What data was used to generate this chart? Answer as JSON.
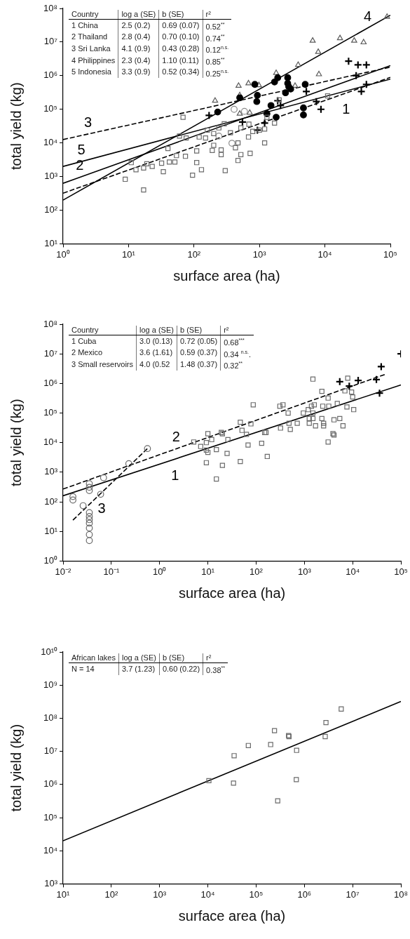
{
  "chart_data": [
    {
      "type": "scatter",
      "log": "xy",
      "xlabel": "surface area (ha)",
      "ylabel": "total yield (kg)",
      "xlim": [
        1,
        100000
      ],
      "ylim": [
        10,
        100000000
      ],
      "xticks": [
        {
          "value": 1,
          "label": "10⁰"
        },
        {
          "value": 10,
          "label": "10¹"
        },
        {
          "value": 100,
          "label": "10²"
        },
        {
          "value": 1000,
          "label": "10³"
        },
        {
          "value": 10000,
          "label": "10⁴"
        },
        {
          "value": 100000,
          "label": "10⁵"
        }
      ],
      "yticks": [
        {
          "value": 10,
          "label": "10¹"
        },
        {
          "value": 100,
          "label": "10²"
        },
        {
          "value": 1000,
          "label": "10³"
        },
        {
          "value": 10000,
          "label": "10⁴"
        },
        {
          "value": 100000,
          "label": "10⁵"
        },
        {
          "value": 1000000,
          "label": "10⁶"
        },
        {
          "value": 10000000,
          "label": "10⁷"
        },
        {
          "value": 100000000,
          "label": "10⁸"
        }
      ],
      "annotations": [
        "Country",
        "log a (SE)",
        "b (SE)",
        "r²",
        "1 China",
        "2.5 (0.2)",
        "0.69 (0.07)",
        "0.52$^{**}$",
        "2 Thailand",
        "2.8 (0.4)",
        "0.70 (0.10)",
        "0.74$^{**}$",
        "3 Sri Lanka",
        "4.1 (0.9)",
        "0.43 (0.28)",
        "0.12$^{n.s.}$",
        "4 Philippines",
        "2.3 (0.4)",
        "1.10 (0.11)",
        "0.85$^{**}$",
        "5 Indonesia",
        "3.3 (0.9)",
        "0.52 (0.34)",
        "0.25$^{n.s.}$",
        {
          "text": "4",
          "x": 45000,
          "y": 26000000
        },
        {
          "text": "3",
          "x": 2.4,
          "y": 18200
        },
        {
          "text": "5",
          "x": 1.9,
          "y": 2800
        },
        {
          "text": "2",
          "x": 1.8,
          "y": 950
        },
        {
          "text": "1",
          "x": 21000,
          "y": 300000
        }
      ],
      "series": [
        {
          "type": "scatter",
          "marker": "square",
          "color": "#6b6b6b",
          "x": [
            68,
            11000,
            2000,
            160,
            60,
            76,
            120,
            150,
            200,
            290,
            240,
            360,
            520,
            690,
            790,
            1000,
            1200,
            1700,
            200,
            260,
            430,
            470,
            680,
            1200,
            110,
            190,
            260,
            520,
            720,
            470,
            300,
            110,
            130,
            95,
            74,
            54,
            40,
            42,
            32,
            51,
            23,
            19,
            17,
            13,
            11,
            8.9,
            1300,
            17,
            34
          ],
          "values": [
            58000,
            250000,
            190000,
            24000,
            16000,
            14000,
            15000,
            14000,
            19000,
            37000,
            28000,
            20000,
            28000,
            36000,
            22000,
            24000,
            26000,
            39000,
            8500,
            6200,
            7200,
            10000,
            15000,
            10000,
            5800,
            6000,
            4500,
            4500,
            4900,
            3000,
            1500,
            2600,
            1600,
            1100,
            4000,
            4200,
            6800,
            2700,
            2500,
            2700,
            2000,
            2400,
            1800,
            1600,
            2600,
            830,
            58000,
            400,
            1400
          ]
        },
        {
          "type": "scatter",
          "marker": "circle",
          "color": "#8a8a8a",
          "x": [
            410,
            590,
            240,
            380
          ],
          "values": [
            100000,
            87000,
            16000,
            9800
          ]
        },
        {
          "type": "scatter",
          "marker": "circle",
          "color": "#000000",
          "x": [
            850,
            500,
            930,
            910,
            230,
            1700,
            1900,
            2700,
            2700,
            2800,
            2500,
            3000,
            5000,
            1500,
            1300,
            1800,
            4700,
            4700
          ],
          "values": [
            550000,
            220000,
            260000,
            170000,
            83000,
            650000,
            870000,
            870000,
            590000,
            470000,
            310000,
            400000,
            550000,
            130000,
            74000,
            58000,
            110000,
            68000
          ]
        },
        {
          "type": "scatter",
          "marker": "triangle",
          "color": "#5a5a5a",
          "x": [
            480,
            680,
            980,
            210,
            500,
            500,
            710,
            1800,
            3500,
            3900,
            6500,
            7900,
            8100,
            17000,
            28000,
            39000,
            89000
          ],
          "values": [
            500000,
            590000,
            520000,
            180000,
            260000,
            74000,
            79000,
            1200000,
            500000,
            2100000,
            11000000,
            5100000,
            1100000,
            13000000,
            11000000,
            9800000,
            56000000
          ]
        },
        {
          "type": "scatter",
          "marker": "cross",
          "color": "#000000",
          "x": [
            170,
            550,
            930,
            1200,
            1900,
            2100,
            5200,
            7400,
            8700,
            23000,
            32000,
            43000,
            30000,
            43000,
            36000
          ],
          "values": [
            66000,
            42000,
            24000,
            39000,
            180000,
            130000,
            340000,
            170000,
            100000,
            2700000,
            2100000,
            2100000,
            1000000,
            550000,
            340000
          ]
        },
        {
          "type": "line",
          "marker": "none",
          "line_style": "dashed",
          "color": "#000000",
          "x": [
            1,
            100000
          ],
          "values": [
            320,
            890000
          ]
        },
        {
          "type": "line",
          "marker": "none",
          "line_style": "solid",
          "color": "#000000",
          "x": [
            1,
            100000
          ],
          "values": [
            630,
            2000000
          ]
        },
        {
          "type": "line",
          "marker": "none",
          "line_style": "dashed",
          "color": "#000000",
          "x": [
            1,
            100000
          ],
          "values": [
            12600,
            1800000
          ]
        },
        {
          "type": "line",
          "marker": "none",
          "line_style": "solid",
          "color": "#000000",
          "x": [
            1,
            100000
          ],
          "values": [
            200,
            63000000
          ]
        },
        {
          "type": "line",
          "marker": "none",
          "line_style": "solid",
          "color": "#000000",
          "x": [
            1,
            100000
          ],
          "values": [
            2000,
            790000
          ]
        }
      ]
    },
    {
      "type": "scatter",
      "log": "xy",
      "xlabel": "surface area (ha)",
      "ylabel": "total yield (kg)",
      "xlim": [
        0.01,
        100000
      ],
      "ylim": [
        1,
        100000000
      ],
      "xticks": [
        {
          "value": 0.01,
          "label": "10⁻²"
        },
        {
          "value": 0.1,
          "label": "10⁻¹"
        },
        {
          "value": 1,
          "label": "10⁰"
        },
        {
          "value": 10,
          "label": "10¹"
        },
        {
          "value": 100,
          "label": "10²"
        },
        {
          "value": 1000,
          "label": "10³"
        },
        {
          "value": 10000,
          "label": "10⁴"
        },
        {
          "value": 100000,
          "label": "10⁵"
        }
      ],
      "yticks": [
        {
          "value": 1,
          "label": "10⁰"
        },
        {
          "value": 10,
          "label": "10¹"
        },
        {
          "value": 100,
          "label": "10²"
        },
        {
          "value": 1000,
          "label": "10³"
        },
        {
          "value": 10000,
          "label": "10⁴"
        },
        {
          "value": 100000,
          "label": "10⁵"
        },
        {
          "value": 1000000,
          "label": "10⁶"
        },
        {
          "value": 10000000,
          "label": "10⁷"
        },
        {
          "value": 100000000,
          "label": "10⁸"
        }
      ],
      "annotations": [
        "Country",
        "log a (SE)",
        "b (SE)",
        "r²",
        "1 Cuba",
        "3.0 (0.13)",
        "0.72 (0.05)",
        "0.68$^{***}$",
        "2 Mexico",
        "3.6 (1.61)",
        "0.59 (0.37)",
        "0.34 $^{n.s.}$.",
        "3 Small reservoirs",
        "4.0 (0.52",
        "1.48 (0.37)",
        "0.32$^{**}$",
        {
          "text": "2",
          "x": 2.2,
          "y": 6200
        },
        {
          "text": "1",
          "x": 2.1,
          "y": 2800
        },
        {
          "text": "3",
          "x": 0.063,
          "y": 206
        }
      ],
      "series": [
        {
          "type": "scatter",
          "marker": "circle",
          "color": "#6b6b6b",
          "x": [
            0.016,
            0.016,
            0.035,
            0.035,
            0.035,
            0.069,
            0.06,
            0.026,
            0.035,
            0.035,
            0.035,
            0.035,
            0.035,
            0.035,
            0.035,
            0.23,
            0.56
          ],
          "values": [
            150,
            115,
            410,
            310,
            240,
            650,
            180,
            74,
            43,
            32,
            25,
            19,
            13,
            7.8,
            4.9,
            1950,
            6300
          ]
        },
        {
          "type": "scatter",
          "marker": "square",
          "color": "#6b6b6b",
          "x": [
            5.1,
            7.1,
            9.3,
            9.3,
            10,
            12,
            15,
            20,
            26,
            25,
            9.3,
            20,
            15,
            47,
            51,
            63,
            47,
            68,
            78,
            130,
            150,
            170,
            320,
            510,
            710,
            1260,
            1700,
            2500,
            4100,
            3100,
            6300,
            1500,
            87,
            2300,
            3100,
            7900,
            6900,
            9500,
            10000,
            310,
            360,
            460,
            950,
            1400,
            1500,
            1200,
            1600,
            2400,
            3200,
            4800,
            7600,
            10500,
            480,
            2300,
            2500,
            4100,
            5400,
            3900,
            1260,
            1500,
            160,
            10,
            19
          ],
          "values": [
            10500,
            7400,
            10000,
            5600,
            4700,
            12600,
            5800,
            20000,
            12600,
            4300,
            2100,
            1700,
            590,
            49000,
            26000,
            19000,
            2300,
            8300,
            43000,
            9500,
            22000,
            3400,
            31000,
            28000,
            45000,
            45000,
            37000,
            45000,
            18000,
            10500,
            37000,
            1400000,
            190000,
            540000,
            320000,
            1500000,
            560000,
            510000,
            350000,
            170000,
            190000,
            100000,
            100000,
            170000,
            100000,
            130000,
            190000,
            170000,
            170000,
            210000,
            160000,
            130000,
            45000,
            65000,
            37000,
            59000,
            65000,
            20000,
            65000,
            65000,
            22000,
            20000,
            22000
          ]
        },
        {
          "type": "scatter",
          "marker": "cross",
          "color": "#000000",
          "x": [
            5400,
            13000,
            31000,
            39000,
            36000,
            8500,
            100000
          ],
          "values": [
            1150000,
            1260000,
            1350000,
            3700000,
            470000,
            810000,
            10000000
          ]
        },
        {
          "type": "line",
          "marker": "none",
          "line_style": "solid",
          "color": "#000000",
          "x": [
            0.01,
            100000
          ],
          "values": [
            160,
            890000
          ]
        },
        {
          "type": "line",
          "marker": "none",
          "line_style": "dashed",
          "color": "#000000",
          "x": [
            0.01,
            50000
          ],
          "values": [
            270,
            2100000
          ]
        },
        {
          "type": "line",
          "marker": "none",
          "line_style": "dashed",
          "color": "#000000",
          "x": [
            0.016,
            0.56
          ],
          "values": [
            24,
            6300
          ]
        }
      ]
    },
    {
      "type": "scatter",
      "log": "xy",
      "xlabel": "surface area (ha)",
      "ylabel": "total yield (kg)",
      "xlim": [
        10,
        100000000
      ],
      "ylim": [
        1000,
        10000000000
      ],
      "xticks": [
        {
          "value": 10,
          "label": "10¹"
        },
        {
          "value": 100,
          "label": "10²"
        },
        {
          "value": 1000,
          "label": "10³"
        },
        {
          "value": 10000,
          "label": "10⁴"
        },
        {
          "value": 100000,
          "label": "10⁵"
        },
        {
          "value": 1000000,
          "label": "10⁶"
        },
        {
          "value": 10000000,
          "label": "10⁷"
        },
        {
          "value": 100000000,
          "label": "10⁸"
        }
      ],
      "yticks": [
        {
          "value": 1000,
          "label": "10³"
        },
        {
          "value": 10000,
          "label": "10⁴"
        },
        {
          "value": 100000,
          "label": "10⁵"
        },
        {
          "value": 1000000,
          "label": "10⁶"
        },
        {
          "value": 10000000,
          "label": "10⁷"
        },
        {
          "value": 100000000,
          "label": "10⁸"
        },
        {
          "value": 1000000000,
          "label": "10⁹"
        },
        {
          "value": 10000000000,
          "label": "10¹⁰"
        }
      ],
      "annotations": [
        "African lakes",
        "log a (SE)",
        "b (SE)",
        "r²",
        "N = 14",
        "3.7 (1.23)",
        "0.60 (0.22)",
        "0.38$^{**}$"
      ],
      "series": [
        {
          "type": "scatter",
          "marker": "square",
          "color": "#6b6b6b",
          "x": [
            10500,
            34000,
            35000,
            69000,
            200000,
            240000,
            470000,
            480000,
            690000,
            680000,
            2800000,
            2700000,
            5800000,
            280000
          ],
          "values": [
            1300000,
            1100000,
            7400000,
            15000000,
            16000000,
            42000000,
            30000000,
            28000000,
            10700000,
            1400000,
            74000000,
            28000000,
            190000000,
            320000
          ]
        },
        {
          "type": "line",
          "marker": "none",
          "line_style": "solid",
          "color": "#000000",
          "x": [
            10,
            100000000
          ],
          "values": [
            20000,
            320000000
          ]
        }
      ]
    }
  ]
}
